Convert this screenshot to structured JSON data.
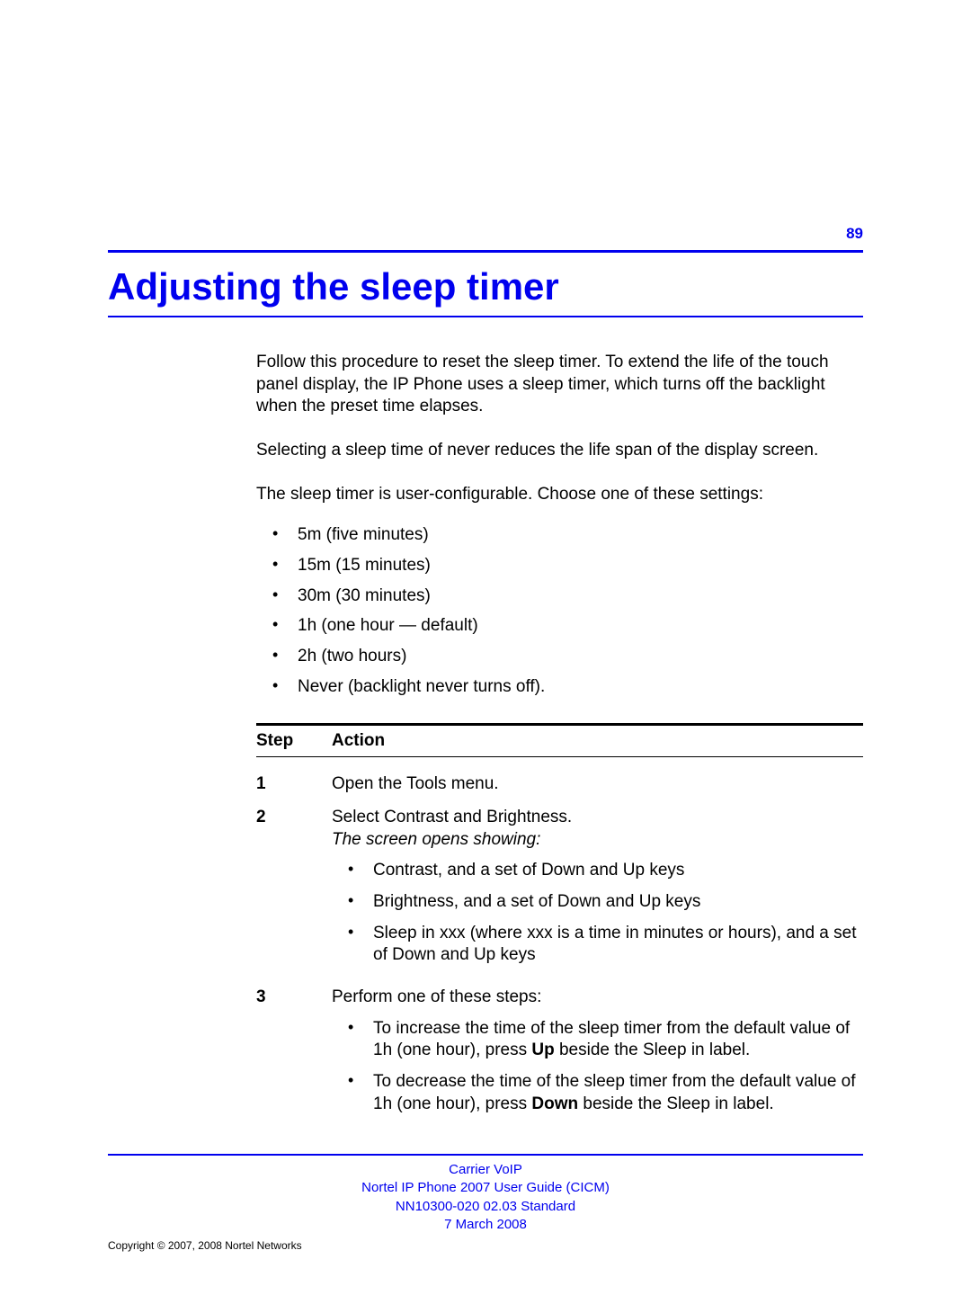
{
  "page_number": "89",
  "title": "Adjusting the sleep timer",
  "intro_paragraphs": [
    "Follow this procedure to reset the sleep timer. To extend the life of the touch panel display, the IP Phone uses a sleep timer, which turns off the backlight when the preset time elapses.",
    "Selecting a sleep time of never reduces the life span of the display screen.",
    "The sleep timer is user-configurable. Choose one of these settings:"
  ],
  "settings_list": [
    "5m (five minutes)",
    "15m (15 minutes)",
    "30m (30 minutes)",
    "1h (one hour — default)",
    "2h (two hours)",
    "Never (backlight never turns off)."
  ],
  "table_headers": {
    "step": "Step",
    "action": "Action"
  },
  "steps": [
    {
      "num": "1",
      "action": "Open the Tools menu."
    },
    {
      "num": "2",
      "action": "Select Contrast and Brightness.",
      "note_italic": "The screen opens showing:",
      "sub": [
        "Contrast, and a set of Down and Up keys",
        "Brightness, and a set of Down and Up keys",
        "Sleep in xxx (where xxx is a time in minutes or hours), and a set of Down and Up keys"
      ]
    },
    {
      "num": "3",
      "action": "Perform one of these steps:",
      "sub_rich": [
        {
          "pre": "To increase the time of the sleep timer from the default value of 1h (one hour), press ",
          "bold": "Up",
          "post": " beside the Sleep in label."
        },
        {
          "pre": "To decrease the time of the sleep timer from the default value of 1h (one hour), press ",
          "bold": "Down",
          "post": " beside the Sleep in label."
        }
      ]
    }
  ],
  "footer": {
    "line1": "Carrier VoIP",
    "line2": "Nortel IP Phone 2007 User Guide (CICM)",
    "line3": "NN10300-020   02.03   Standard",
    "line4": "7 March 2008"
  },
  "copyright": "Copyright © 2007, 2008 Nortel Networks",
  "colors": {
    "accent": "#0000ee",
    "text": "#000000",
    "background": "#ffffff"
  },
  "typography": {
    "title_fontsize_pt": 32,
    "body_fontsize_pt": 14,
    "footer_fontsize_pt": 11,
    "font_family": "Arial, Helvetica, sans-serif"
  }
}
